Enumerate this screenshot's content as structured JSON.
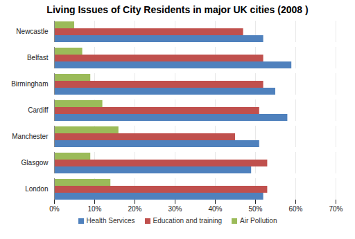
{
  "chart_data": {
    "type": "bar",
    "orientation": "horizontal",
    "title": "Living Issues of City Residents in major UK cities (2008 )",
    "categories": [
      "Newcastle",
      "Belfast",
      "Birmingham",
      "Cardiff",
      "Manchester",
      "Glasgow",
      "London"
    ],
    "series": [
      {
        "name": "Health Services",
        "color": "#4f81bd",
        "values": [
          52,
          59,
          55,
          58,
          51,
          49,
          52
        ]
      },
      {
        "name": "Education and training",
        "color": "#c0504d",
        "values": [
          47,
          52,
          52,
          51,
          45,
          53,
          53
        ]
      },
      {
        "name": "Air Pollution",
        "color": "#9bbb59",
        "values": [
          5,
          7,
          9,
          12,
          16,
          9,
          14
        ]
      }
    ],
    "xlim": [
      0,
      70
    ],
    "xticks": [
      {
        "value": 0,
        "label": "0%"
      },
      {
        "value": 10,
        "label": "10%"
      },
      {
        "value": 20,
        "label": "20%"
      },
      {
        "value": 30,
        "label": "30%"
      },
      {
        "value": 40,
        "label": "40%"
      },
      {
        "value": 50,
        "label": "50%"
      },
      {
        "value": 60,
        "label": "60%"
      },
      {
        "value": 70,
        "label": "70%"
      }
    ],
    "grid": true,
    "legend": "bottom"
  }
}
